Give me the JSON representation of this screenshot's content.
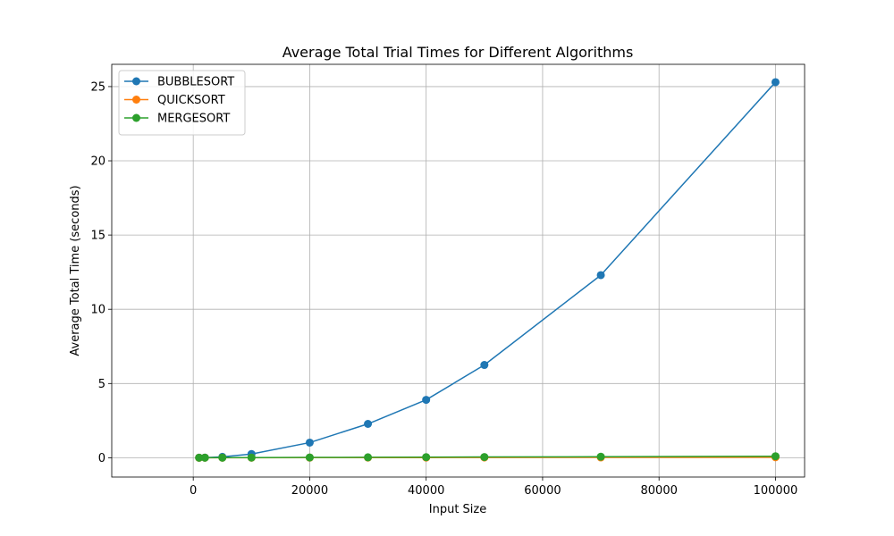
{
  "chart_data": {
    "type": "line",
    "title": "Average Total Trial Times for Different Algorithms",
    "xlabel": "Input Size",
    "ylabel": "Average Total Time (seconds)",
    "xlim": [
      -14000,
      105000
    ],
    "ylim": [
      -1.3,
      26.5
    ],
    "xticks": [
      0,
      20000,
      40000,
      60000,
      80000,
      100000
    ],
    "yticks": [
      0,
      5,
      10,
      15,
      20,
      25
    ],
    "grid": true,
    "legend_position": "top-left",
    "x": [
      1000,
      2000,
      5000,
      10000,
      20000,
      30000,
      40000,
      50000,
      70000,
      100000
    ],
    "series": [
      {
        "name": "BUBBLESORT",
        "color": "#1f77b4",
        "values": [
          0.003,
          0.01,
          0.06,
          0.25,
          1.02,
          2.28,
          3.9,
          6.25,
          12.3,
          25.3
        ]
      },
      {
        "name": "QUICKSORT",
        "color": "#ff7f0e",
        "values": [
          0.0005,
          0.001,
          0.002,
          0.003,
          0.006,
          0.009,
          0.012,
          0.016,
          0.022,
          0.032
        ]
      },
      {
        "name": "MERGESORT",
        "color": "#2ca02c",
        "values": [
          0.001,
          0.002,
          0.005,
          0.01,
          0.02,
          0.03,
          0.04,
          0.05,
          0.07,
          0.1
        ]
      }
    ]
  }
}
